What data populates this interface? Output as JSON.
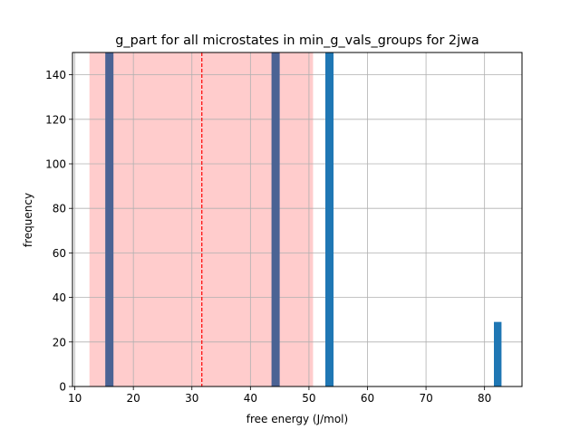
{
  "chart_data": {
    "type": "bar",
    "title": "g_part for all microstates in min_g_vals_groups for 2jwa",
    "xlabel": "free energy (J/mol)",
    "ylabel": "frequency",
    "xlim": [
      9.6,
      86.4
    ],
    "ylim": [
      0,
      150
    ],
    "x_ticks": [
      10,
      20,
      30,
      40,
      50,
      60,
      70,
      80
    ],
    "y_ticks": [
      0,
      20,
      40,
      60,
      80,
      100,
      120,
      140
    ],
    "grid": true,
    "bars": [
      {
        "x0": 15.2,
        "x1": 16.6,
        "value": 150
      },
      {
        "x0": 43.6,
        "x1": 45.0,
        "value": 150
      },
      {
        "x0": 52.8,
        "x1": 54.2,
        "value": 150
      },
      {
        "x0": 81.6,
        "x1": 82.9,
        "value": 29
      }
    ],
    "shaded_band": {
      "x0": 12.5,
      "x1": 50.7,
      "color": "#ffcccc"
    },
    "mean_line": {
      "x": 31.7,
      "color": "#ff0000",
      "style": "dashed"
    },
    "bar_color": "#1f77b4",
    "overlap_bar_color": "#4b6394"
  }
}
